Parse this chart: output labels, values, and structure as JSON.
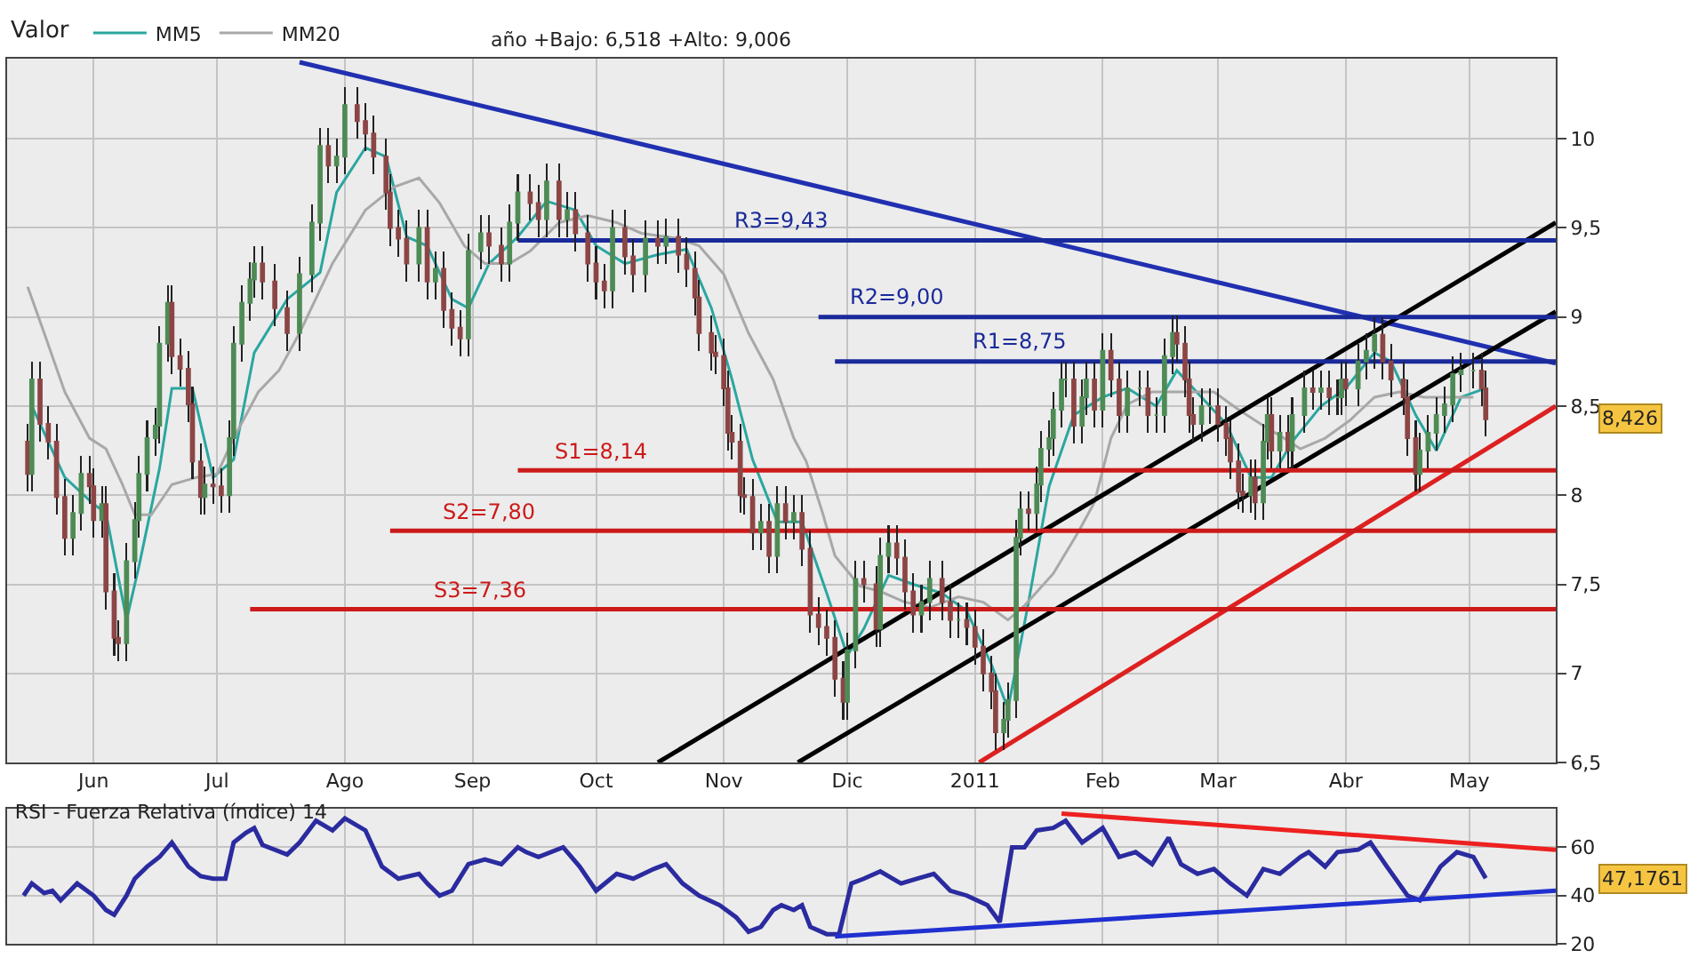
{
  "chart_data": [
    {
      "type": "candlestick",
      "legend": "top left",
      "colors": [
        "#8c4545",
        "#4e8b55",
        "#8c4545",
        "#8c4545",
        "#8c4545",
        "#8c4545",
        "#4e8b55",
        "#4e8b55",
        "#8c4545",
        "#8c4545",
        "#4e8b55",
        "#8c4545",
        "#8c4545",
        "#8c4545",
        "#4e8b55",
        "#4e8b55",
        "#4e8b55",
        "#4e8b55",
        "#4e8b55",
        "#4e8b55",
        "#4e8b55",
        "#8c4545",
        "#8c4545",
        "#8c4545",
        "#8c4545",
        "#8c4545",
        "#4e8b55",
        "#8c4545",
        "#8c4545",
        "#4e8b55",
        "#4e8b55",
        "#4e8b55",
        "#4e8b55",
        "#4e8b55",
        "#8c4545",
        "#8c4545",
        "#8c4545",
        "#4e8b55",
        "#4e8b55",
        "#4e8b55",
        "#8c4545",
        "#4e8b55",
        "#4e8b55",
        "#8c4545",
        "#8c4545",
        "#8c4545",
        "#8c4545",
        "#8c4545",
        "#8c4545",
        "#8c4545",
        "#4e8b55",
        "#8c4545",
        "#4e8b55",
        "#8c4545",
        "#8c4545",
        "#8c4545",
        "#4e8b55",
        "#4e8b55",
        "#8c4545",
        "#8c4545",
        "#4e8b55",
        "#4e8b55",
        "#8c4545",
        "#8c4545",
        "#4e8b55",
        "#8c4545",
        "#4e8b55",
        "#8c4545",
        "#8c4545",
        "#8c4545",
        "#8c4545",
        "#4e8b55",
        "#8c4545",
        "#8c4545",
        "#4e8b55",
        "#8c4545",
        "#4e8b55",
        "#8c4545",
        "#8c4545",
        "#8c4545",
        "#8c4545",
        "#8c4545",
        "#8c4545",
        "#8c4545",
        "#8c4545",
        "#8c4545",
        "#8c4545",
        "#8c4545",
        "#8c4545",
        "#4e8b55",
        "#8c4545",
        "#4e8b55",
        "#8c4545",
        "#4e8b55",
        "#8c4545",
        "#8c4545",
        "#8c4545",
        "#8c4545",
        "#8c4545",
        "#8c4545",
        "#4e8b55",
        "#4e8b55",
        "#8c4545",
        "#8c4545",
        "#4e8b55",
        "#4e8b55",
        "#8c4545",
        "#8c4545",
        "#8c4545",
        "#4e8b55",
        "#4e8b55",
        "#8c4545",
        "#8c4545",
        "#4e8b55",
        "#8c4545",
        "#8c4545",
        "#8c4545",
        "#8c4545",
        "#8c4545",
        "#4e8b55",
        "#4e8b55",
        "#4e8b55",
        "#4e8b55",
        "#8c4545",
        "#4e8b55",
        "#4e8b55",
        "#4e8b55",
        "#4e8b55",
        "#4e8b55",
        "#4e8b55",
        "#8c4545",
        "#4e8b55",
        "#4e8b55",
        "#8c4545",
        "#4e8b55",
        "#8c4545",
        "#8c4545",
        "#4e8b55",
        "#4e8b55",
        "#8c4545",
        "#4e8b55",
        "#4e8b55",
        "#4e8b55",
        "#8c4545",
        "#8c4545",
        "#8c4545",
        "#8c4545",
        "#4e8b55",
        "#4e8b55",
        "#8c4545",
        "#8c4545",
        "#8c4545",
        "#8c4545",
        "#8c4545",
        "#4e8b55",
        "#8c4545",
        "#4e8b55",
        "#4e8b55",
        "#8c4545",
        "#4e8b55",
        "#8c4545",
        "#4e8b55",
        "#4e8b55",
        "#8c4545",
        "#4e8b55",
        "#8c4545",
        "#4e8b55",
        "#4e8b55",
        "#8c4545",
        "#4e8b55",
        "#4e8b55",
        "#4e8b55",
        "#8c4545",
        "#8c4545",
        "#8c4545",
        "#8c4545",
        "#8c4545",
        "#4e8b55",
        "#4e8b55",
        "#4e8b55",
        "#4e8b55",
        "#4e8b55",
        "#4e8b55",
        "#4e8b55",
        "#8c4545",
        "#8c4545"
      ],
      "legend_title": "Valor",
      "grid": true,
      "annotations": [
        "año +Bajo: 6,518 +Alto: 9,006",
        {
          "text": "R3=9,43",
          "x": "2010-11-15",
          "y": 9.43
        },
        {
          "text": "R2=9,00",
          "x": "2010-12-13",
          "y": 9.0
        },
        {
          "text": "R1=8,75",
          "x": "2011-01-12",
          "y": 8.75
        },
        {
          "text": "S1=8,14",
          "x": "2010-10-02",
          "y": 8.14
        },
        {
          "text": "S2=7,80",
          "x": "2010-09-05",
          "y": 7.8
        },
        {
          "text": "S3=7,36",
          "x": "2010-09-03",
          "y": 7.36
        },
        "8,426"
      ],
      "xlim": [
        "2010-05-11",
        "2011-05-22"
      ],
      "xticks": [
        {
          "value": "2010-06-01",
          "label": "Jun"
        },
        {
          "value": "2010-07-01",
          "label": "Jul"
        },
        {
          "value": "2010-08-01",
          "label": "Ago"
        },
        {
          "value": "2010-09-01",
          "label": "Sep"
        },
        {
          "value": "2010-10-01",
          "label": "Oct"
        },
        {
          "value": "2010-11-01",
          "label": "Nov"
        },
        {
          "value": "2010-12-01",
          "label": "Dic"
        },
        {
          "value": "2011-01-01",
          "label": "2011"
        },
        {
          "value": "2011-02-01",
          "label": "Feb"
        },
        {
          "value": "2011-03-01",
          "label": "Mar"
        },
        {
          "value": "2011-04-01",
          "label": "Abr"
        },
        {
          "value": "2011-05-01",
          "label": "May"
        }
      ],
      "ylim": [
        6.5,
        10.45
      ],
      "yticks": [
        {
          "value": 6.5,
          "label": "6,5"
        },
        7,
        {
          "value": 7.5,
          "label": "7,5"
        },
        8,
        {
          "value": 8.5,
          "label": "8,5"
        },
        9,
        {
          "value": 9.5,
          "label": "9,5"
        },
        10
      ],
      "x": [
        "2010-05-16",
        "2010-05-17",
        "2010-05-19",
        "2010-05-21",
        "2010-05-23",
        "2010-05-25",
        "2010-05-27",
        "2010-05-29",
        "2010-05-31",
        "2010-06-01",
        "2010-06-03",
        "2010-06-04",
        "2010-06-06",
        "2010-06-07",
        "2010-06-09",
        "2010-06-11",
        "2010-06-12",
        "2010-06-14",
        "2010-06-16",
        "2010-06-17",
        "2010-06-19",
        "2010-06-20",
        "2010-06-22",
        "2010-06-24",
        "2010-06-25",
        "2010-06-27",
        "2010-06-28",
        "2010-06-30",
        "2010-07-02",
        "2010-07-04",
        "2010-07-05",
        "2010-07-07",
        "2010-07-09",
        "2010-07-10",
        "2010-07-12",
        "2010-07-15",
        "2010-07-18",
        "2010-07-21",
        "2010-07-24",
        "2010-07-26",
        "2010-07-28",
        "2010-07-30",
        "2010-08-01",
        "2010-08-04",
        "2010-08-06",
        "2010-08-08",
        "2010-08-11",
        "2010-08-12",
        "2010-08-14",
        "2010-08-16",
        "2010-08-19",
        "2010-08-21",
        "2010-08-23",
        "2010-08-25",
        "2010-08-27",
        "2010-08-29",
        "2010-08-31",
        "2010-09-03",
        "2010-09-05",
        "2010-09-08",
        "2010-09-10",
        "2010-09-12",
        "2010-09-15",
        "2010-09-17",
        "2010-09-19",
        "2010-09-22",
        "2010-09-24",
        "2010-09-26",
        "2010-09-29",
        "2010-10-01",
        "2010-10-03",
        "2010-10-05",
        "2010-10-08",
        "2010-10-10",
        "2010-10-13",
        "2010-10-16",
        "2010-10-18",
        "2010-10-21",
        "2010-10-23",
        "2010-10-25",
        "2010-10-26",
        "2010-10-29",
        "2010-10-30",
        "2010-11-01",
        "2010-11-02",
        "2010-11-03",
        "2010-11-05",
        "2010-11-06",
        "2010-11-08",
        "2010-11-10",
        "2010-11-12",
        "2010-11-14",
        "2010-11-16",
        "2010-11-18",
        "2010-11-20",
        "2010-11-22",
        "2010-11-24",
        "2010-11-26",
        "2010-11-28",
        "2010-11-30",
        "2010-12-01",
        "2010-12-03",
        "2010-12-05",
        "2010-12-08",
        "2010-12-09",
        "2010-12-11",
        "2010-12-13",
        "2010-12-15",
        "2010-12-17",
        "2010-12-19",
        "2010-12-21",
        "2010-12-24",
        "2010-12-26",
        "2010-12-28",
        "2010-12-30",
        "2011-01-01",
        "2011-01-03",
        "2011-01-05",
        "2011-01-06",
        "2011-01-08",
        "2011-01-09",
        "2011-01-11",
        "2011-01-12",
        "2011-01-14",
        "2011-01-16",
        "2011-01-17",
        "2011-01-19",
        "2011-01-20",
        "2011-01-22",
        "2011-01-23",
        "2011-01-25",
        "2011-01-27",
        "2011-01-28",
        "2011-01-30",
        "2011-02-01",
        "2011-02-03",
        "2011-02-05",
        "2011-02-07",
        "2011-02-10",
        "2011-02-12",
        "2011-02-14",
        "2011-02-16",
        "2011-02-18",
        "2011-02-19",
        "2011-02-21",
        "2011-02-22",
        "2011-02-23",
        "2011-02-25",
        "2011-02-27",
        "2011-03-01",
        "2011-03-03",
        "2011-03-04",
        "2011-03-06",
        "2011-03-07",
        "2011-03-09",
        "2011-03-10",
        "2011-03-12",
        "2011-03-13",
        "2011-03-14",
        "2011-03-16",
        "2011-03-18",
        "2011-03-19",
        "2011-03-22",
        "2011-03-24",
        "2011-03-26",
        "2011-03-28",
        "2011-03-30",
        "2011-03-31",
        "2011-04-01",
        "2011-04-04",
        "2011-04-06",
        "2011-04-08",
        "2011-04-10",
        "2011-04-12",
        "2011-04-15",
        "2011-04-16",
        "2011-04-18",
        "2011-04-19",
        "2011-04-21",
        "2011-04-23",
        "2011-04-25",
        "2011-04-27",
        "2011-04-29",
        "2011-05-02",
        "2011-05-04",
        "2011-05-05"
      ],
      "ohlc": [
        [
          8.3,
          8.4,
          8.02,
          8.12
        ],
        [
          8.12,
          8.75,
          8.02,
          8.65
        ],
        [
          8.65,
          8.75,
          8.3,
          8.4
        ],
        [
          8.4,
          8.5,
          8.2,
          8.3
        ],
        [
          8.3,
          8.4,
          7.89,
          7.99
        ],
        [
          7.99,
          8.09,
          7.66,
          7.76
        ],
        [
          7.76,
          8.0,
          7.66,
          7.9
        ],
        [
          7.9,
          8.22,
          7.8,
          8.12
        ],
        [
          8.12,
          8.22,
          7.95,
          8.05
        ],
        [
          8.05,
          8.15,
          7.76,
          7.86
        ],
        [
          7.86,
          8.05,
          7.76,
          7.95
        ],
        [
          7.95,
          8.05,
          7.36,
          7.46
        ],
        [
          7.46,
          7.56,
          7.1,
          7.2
        ],
        [
          7.2,
          7.3,
          7.07,
          7.17
        ],
        [
          7.17,
          7.73,
          7.07,
          7.63
        ],
        [
          7.63,
          7.96,
          7.53,
          7.86
        ],
        [
          7.86,
          8.22,
          7.76,
          8.12
        ],
        [
          8.12,
          8.42,
          8.02,
          8.32
        ],
        [
          8.32,
          8.49,
          8.22,
          8.39
        ],
        [
          8.39,
          8.95,
          8.29,
          8.85
        ],
        [
          8.85,
          9.18,
          8.75,
          9.08
        ],
        [
          9.08,
          9.18,
          8.68,
          8.78
        ],
        [
          8.78,
          8.88,
          8.61,
          8.71
        ],
        [
          8.71,
          8.81,
          8.41,
          8.51
        ],
        [
          8.51,
          8.61,
          8.09,
          8.19
        ],
        [
          8.19,
          8.29,
          7.89,
          7.99
        ],
        [
          7.99,
          8.16,
          7.89,
          8.06
        ],
        [
          8.06,
          8.16,
          7.95,
          8.05
        ],
        [
          8.05,
          8.15,
          7.9,
          8.0
        ],
        [
          8.0,
          8.42,
          7.9,
          8.32
        ],
        [
          8.32,
          8.95,
          8.22,
          8.85
        ],
        [
          8.85,
          9.18,
          8.75,
          9.08
        ],
        [
          9.08,
          9.31,
          8.98,
          9.21
        ],
        [
          9.21,
          9.4,
          9.11,
          9.3
        ],
        [
          9.3,
          9.4,
          9.1,
          9.2
        ],
        [
          9.2,
          9.3,
          8.95,
          9.05
        ],
        [
          9.05,
          9.15,
          8.81,
          8.91
        ],
        [
          8.91,
          9.34,
          8.81,
          9.24
        ],
        [
          9.24,
          9.63,
          9.14,
          9.53
        ],
        [
          9.53,
          10.06,
          9.43,
          9.96
        ],
        [
          9.96,
          10.06,
          9.75,
          9.85
        ],
        [
          9.85,
          10.0,
          9.75,
          9.9
        ],
        [
          9.9,
          10.29,
          9.8,
          10.19
        ],
        [
          10.19,
          10.29,
          10.0,
          10.1
        ],
        [
          10.1,
          10.2,
          9.93,
          10.03
        ],
        [
          10.03,
          10.13,
          9.8,
          9.9
        ],
        [
          9.9,
          10.0,
          9.6,
          9.7
        ],
        [
          9.7,
          9.8,
          9.4,
          9.5
        ],
        [
          9.5,
          9.6,
          9.34,
          9.44
        ],
        [
          9.44,
          9.54,
          9.2,
          9.3
        ],
        [
          9.3,
          9.6,
          9.2,
          9.5
        ],
        [
          9.5,
          9.6,
          9.1,
          9.2
        ],
        [
          9.2,
          9.37,
          9.1,
          9.27
        ],
        [
          9.27,
          9.37,
          8.94,
          9.04
        ],
        [
          9.04,
          9.14,
          8.84,
          8.94
        ],
        [
          8.94,
          9.04,
          8.78,
          8.88
        ],
        [
          8.88,
          9.47,
          8.78,
          9.37
        ],
        [
          9.37,
          9.57,
          9.27,
          9.47
        ],
        [
          9.47,
          9.57,
          9.3,
          9.4
        ],
        [
          9.4,
          9.5,
          9.2,
          9.3
        ],
        [
          9.3,
          9.63,
          9.2,
          9.53
        ],
        [
          9.53,
          9.8,
          9.43,
          9.7
        ],
        [
          9.7,
          9.8,
          9.54,
          9.64
        ],
        [
          9.64,
          9.74,
          9.45,
          9.55
        ],
        [
          9.55,
          9.86,
          9.45,
          9.76
        ],
        [
          9.76,
          9.86,
          9.45,
          9.55
        ],
        [
          9.55,
          9.7,
          9.45,
          9.6
        ],
        [
          9.6,
          9.7,
          9.37,
          9.47
        ],
        [
          9.47,
          9.57,
          9.2,
          9.3
        ],
        [
          9.3,
          9.4,
          9.1,
          9.2
        ],
        [
          9.2,
          9.3,
          9.05,
          9.15
        ],
        [
          9.15,
          9.6,
          9.05,
          9.5
        ],
        [
          9.5,
          9.6,
          9.24,
          9.34
        ],
        [
          9.34,
          9.44,
          9.14,
          9.24
        ],
        [
          9.24,
          9.54,
          9.14,
          9.44
        ],
        [
          9.44,
          9.54,
          9.3,
          9.4
        ],
        [
          9.4,
          9.55,
          9.3,
          9.45
        ],
        [
          9.45,
          9.55,
          9.25,
          9.35
        ],
        [
          9.35,
          9.45,
          9.17,
          9.27
        ],
        [
          9.27,
          9.37,
          9.01,
          9.11
        ],
        [
          9.11,
          9.21,
          8.81,
          8.91
        ],
        [
          8.91,
          9.01,
          8.7,
          8.8
        ],
        [
          8.8,
          8.9,
          8.68,
          8.78
        ],
        [
          8.78,
          8.88,
          8.5,
          8.6
        ],
        [
          8.6,
          8.7,
          8.25,
          8.35
        ],
        [
          8.35,
          8.45,
          8.2,
          8.3
        ],
        [
          8.3,
          8.4,
          7.9,
          8.0
        ],
        [
          8.0,
          8.1,
          7.89,
          7.99
        ],
        [
          7.99,
          8.09,
          7.69,
          7.79
        ],
        [
          7.79,
          7.95,
          7.69,
          7.85
        ],
        [
          7.85,
          7.95,
          7.56,
          7.66
        ],
        [
          7.66,
          8.05,
          7.56,
          7.95
        ],
        [
          7.95,
          8.05,
          7.75,
          7.85
        ],
        [
          7.85,
          8.0,
          7.75,
          7.9
        ],
        [
          7.9,
          8.0,
          7.6,
          7.7
        ],
        [
          7.7,
          7.8,
          7.23,
          7.33
        ],
        [
          7.33,
          7.43,
          7.16,
          7.26
        ],
        [
          7.26,
          7.36,
          7.1,
          7.2
        ],
        [
          7.2,
          7.3,
          6.87,
          6.97
        ],
        [
          6.97,
          7.07,
          6.74,
          6.84
        ],
        [
          6.84,
          7.23,
          6.74,
          7.13
        ],
        [
          7.13,
          7.63,
          7.03,
          7.53
        ],
        [
          7.53,
          7.63,
          7.4,
          7.5
        ],
        [
          7.5,
          7.6,
          7.15,
          7.25
        ],
        [
          7.25,
          7.76,
          7.15,
          7.66
        ],
        [
          7.66,
          7.83,
          7.56,
          7.73
        ],
        [
          7.73,
          7.83,
          7.55,
          7.65
        ],
        [
          7.65,
          7.75,
          7.36,
          7.46
        ],
        [
          7.46,
          7.56,
          7.23,
          7.33
        ],
        [
          7.33,
          7.5,
          7.23,
          7.4
        ],
        [
          7.4,
          7.63,
          7.3,
          7.53
        ],
        [
          7.53,
          7.63,
          7.3,
          7.4
        ],
        [
          7.4,
          7.5,
          7.2,
          7.3
        ],
        [
          7.3,
          7.4,
          7.2,
          7.3
        ],
        [
          7.3,
          7.4,
          7.16,
          7.26
        ],
        [
          7.26,
          7.36,
          7.05,
          7.15
        ],
        [
          7.15,
          7.25,
          6.9,
          7.0
        ],
        [
          7.0,
          7.1,
          6.8,
          6.9
        ],
        [
          6.9,
          7.0,
          6.57,
          6.67
        ],
        [
          6.67,
          6.84,
          6.57,
          6.74
        ],
        [
          6.74,
          6.95,
          6.64,
          6.85
        ],
        [
          6.85,
          7.86,
          6.75,
          7.76
        ],
        [
          7.76,
          8.02,
          7.66,
          7.92
        ],
        [
          7.92,
          8.02,
          7.8,
          7.9
        ],
        [
          7.9,
          8.16,
          7.8,
          8.06
        ],
        [
          8.06,
          8.36,
          7.96,
          8.26
        ],
        [
          8.26,
          8.42,
          8.16,
          8.32
        ],
        [
          8.32,
          8.58,
          8.22,
          8.48
        ],
        [
          8.48,
          8.75,
          8.38,
          8.65
        ],
        [
          8.65,
          8.75,
          8.55,
          8.65
        ],
        [
          8.65,
          8.75,
          8.29,
          8.39
        ],
        [
          8.39,
          8.65,
          8.29,
          8.55
        ],
        [
          8.55,
          8.75,
          8.45,
          8.65
        ],
        [
          8.65,
          8.75,
          8.38,
          8.48
        ],
        [
          8.48,
          8.91,
          8.38,
          8.81
        ],
        [
          8.81,
          8.91,
          8.55,
          8.65
        ],
        [
          8.65,
          8.75,
          8.35,
          8.45
        ],
        [
          8.45,
          8.7,
          8.35,
          8.6
        ],
        [
          8.6,
          8.7,
          8.5,
          8.6
        ],
        [
          8.6,
          8.7,
          8.35,
          8.45
        ],
        [
          8.45,
          8.55,
          8.35,
          8.45
        ],
        [
          8.45,
          8.88,
          8.35,
          8.78
        ],
        [
          8.78,
          9.01,
          8.68,
          8.91
        ],
        [
          8.91,
          9.01,
          8.75,
          8.85
        ],
        [
          8.85,
          8.95,
          8.55,
          8.65
        ],
        [
          8.65,
          8.75,
          8.35,
          8.45
        ],
        [
          8.45,
          8.55,
          8.3,
          8.4
        ],
        [
          8.4,
          8.6,
          8.3,
          8.5
        ],
        [
          8.5,
          8.6,
          8.4,
          8.5
        ],
        [
          8.5,
          8.6,
          8.3,
          8.4
        ],
        [
          8.4,
          8.5,
          8.22,
          8.32
        ],
        [
          8.32,
          8.42,
          8.09,
          8.19
        ],
        [
          8.19,
          8.29,
          7.92,
          8.02
        ],
        [
          8.02,
          8.12,
          7.9,
          8.0
        ],
        [
          8.0,
          8.2,
          7.9,
          8.1
        ],
        [
          8.1,
          8.2,
          7.86,
          7.96
        ],
        [
          7.96,
          8.4,
          7.86,
          8.3
        ],
        [
          8.3,
          8.55,
          8.2,
          8.45
        ],
        [
          8.45,
          8.55,
          8.15,
          8.25
        ],
        [
          8.25,
          8.45,
          8.15,
          8.35
        ],
        [
          8.35,
          8.45,
          8.15,
          8.25
        ],
        [
          8.25,
          8.55,
          8.15,
          8.45
        ],
        [
          8.45,
          8.7,
          8.35,
          8.6
        ],
        [
          8.6,
          8.7,
          8.48,
          8.58
        ],
        [
          8.58,
          8.7,
          8.48,
          8.6
        ],
        [
          8.6,
          8.7,
          8.45,
          8.55
        ],
        [
          8.55,
          8.65,
          8.45,
          8.55
        ],
        [
          8.55,
          8.75,
          8.45,
          8.65
        ],
        [
          8.65,
          8.75,
          8.5,
          8.6
        ],
        [
          8.6,
          8.85,
          8.5,
          8.75
        ],
        [
          8.75,
          8.91,
          8.65,
          8.81
        ],
        [
          8.81,
          9.0,
          8.71,
          8.9
        ],
        [
          8.9,
          9.0,
          8.65,
          8.75
        ],
        [
          8.75,
          8.85,
          8.55,
          8.65
        ],
        [
          8.65,
          8.75,
          8.45,
          8.55
        ],
        [
          8.55,
          8.65,
          8.22,
          8.32
        ],
        [
          8.32,
          8.42,
          8.02,
          8.12
        ],
        [
          8.12,
          8.35,
          8.02,
          8.25
        ],
        [
          8.25,
          8.45,
          8.15,
          8.35
        ],
        [
          8.35,
          8.55,
          8.25,
          8.45
        ],
        [
          8.45,
          8.61,
          8.35,
          8.51
        ],
        [
          8.51,
          8.78,
          8.41,
          8.68
        ],
        [
          8.68,
          8.8,
          8.58,
          8.7
        ],
        [
          8.7,
          8.8,
          8.6,
          8.7
        ],
        [
          8.7,
          8.8,
          8.5,
          8.6
        ],
        [
          8.6,
          8.7,
          8.33,
          8.426
        ]
      ],
      "series": [
        {
          "type": "line",
          "name": "MM5",
          "color": "#2aa6a0",
          "x": [
            "2010-05-17",
            "2010-05-25",
            "2010-06-01",
            "2010-06-04",
            "2010-06-09",
            "2010-06-12",
            "2010-06-17",
            "2010-06-20",
            "2010-06-25",
            "2010-06-30",
            "2010-07-05",
            "2010-07-10",
            "2010-07-18",
            "2010-07-26",
            "2010-07-30",
            "2010-08-06",
            "2010-08-11",
            "2010-08-16",
            "2010-08-21",
            "2010-08-27",
            "2010-08-31",
            "2010-09-05",
            "2010-09-12",
            "2010-09-19",
            "2010-09-26",
            "2010-10-01",
            "2010-10-08",
            "2010-10-16",
            "2010-10-23",
            "2010-10-29",
            "2010-11-03",
            "2010-11-08",
            "2010-11-14",
            "2010-11-20",
            "2010-11-26",
            "2010-12-01",
            "2010-12-05",
            "2010-12-11",
            "2010-12-17",
            "2010-12-24",
            "2010-12-30",
            "2011-01-05",
            "2011-01-09",
            "2011-01-14",
            "2011-01-19",
            "2011-01-25",
            "2011-02-01",
            "2011-02-07",
            "2011-02-14",
            "2011-02-19",
            "2011-02-25",
            "2011-03-03",
            "2011-03-09",
            "2011-03-14",
            "2011-03-19",
            "2011-03-26",
            "2011-04-01",
            "2011-04-08",
            "2011-04-12",
            "2011-04-18",
            "2011-04-23",
            "2011-04-29",
            "2011-05-05"
          ],
          "values": [
            8.5,
            8.1,
            7.95,
            7.9,
            7.3,
            7.6,
            8.15,
            8.6,
            8.6,
            8.1,
            8.2,
            8.8,
            9.1,
            9.25,
            9.7,
            9.95,
            9.9,
            9.45,
            9.4,
            9.1,
            9.05,
            9.3,
            9.45,
            9.65,
            9.6,
            9.4,
            9.3,
            9.35,
            9.38,
            9.05,
            8.65,
            8.2,
            7.85,
            7.85,
            7.45,
            7.1,
            7.25,
            7.55,
            7.5,
            7.45,
            7.35,
            7.05,
            6.8,
            7.4,
            8.05,
            8.45,
            8.55,
            8.6,
            8.5,
            8.7,
            8.55,
            8.4,
            8.1,
            8.1,
            8.3,
            8.5,
            8.6,
            8.8,
            8.75,
            8.45,
            8.25,
            8.55,
            8.6
          ]
        },
        {
          "type": "line",
          "name": "MM20",
          "color": "#a8a8a8",
          "x": [
            "2010-05-16",
            "2010-05-20",
            "2010-05-25",
            "2010-05-31",
            "2010-06-04",
            "2010-06-08",
            "2010-06-11",
            "2010-06-15",
            "2010-06-20",
            "2010-06-26",
            "2010-07-01",
            "2010-07-05",
            "2010-07-11",
            "2010-07-16",
            "2010-07-21",
            "2010-07-29",
            "2010-08-06",
            "2010-08-13",
            "2010-08-19",
            "2010-08-24",
            "2010-08-30",
            "2010-09-04",
            "2010-09-10",
            "2010-09-15",
            "2010-09-22",
            "2010-09-29",
            "2010-10-06",
            "2010-10-12",
            "2010-10-21",
            "2010-10-26",
            "2010-11-01",
            "2010-11-07",
            "2010-11-13",
            "2010-11-18",
            "2010-11-21",
            "2010-11-25",
            "2010-11-28",
            "2010-12-04",
            "2010-12-09",
            "2010-12-15",
            "2010-12-21",
            "2010-12-28",
            "2011-01-03",
            "2011-01-09",
            "2011-01-13",
            "2011-01-20",
            "2011-01-26",
            "2011-01-30",
            "2011-02-03",
            "2011-02-07",
            "2011-02-13",
            "2011-02-19",
            "2011-02-24",
            "2011-02-28",
            "2011-03-06",
            "2011-03-12",
            "2011-03-17",
            "2011-03-21",
            "2011-03-27",
            "2011-04-02",
            "2011-04-08",
            "2011-04-14",
            "2011-04-20",
            "2011-04-27",
            "2011-05-02"
          ],
          "values": [
            9.17,
            8.91,
            8.58,
            8.32,
            8.26,
            8.06,
            7.89,
            7.89,
            8.06,
            8.1,
            8.12,
            8.32,
            8.58,
            8.7,
            8.91,
            9.3,
            9.6,
            9.73,
            9.78,
            9.64,
            9.4,
            9.3,
            9.3,
            9.37,
            9.53,
            9.57,
            9.53,
            9.47,
            9.44,
            9.4,
            9.24,
            8.91,
            8.65,
            8.32,
            8.19,
            7.9,
            7.66,
            7.49,
            7.46,
            7.4,
            7.37,
            7.43,
            7.4,
            7.3,
            7.38,
            7.56,
            7.79,
            7.96,
            8.32,
            8.51,
            8.58,
            8.58,
            8.58,
            8.58,
            8.48,
            8.39,
            8.32,
            8.26,
            8.32,
            8.42,
            8.55,
            8.58,
            8.55,
            8.55,
            8.55
          ]
        },
        {
          "type": "line",
          "color": "#2030b0",
          "x": [
            "2010-07-21",
            "2011-05-22"
          ],
          "values": [
            10.43,
            8.74
          ]
        },
        {
          "type": "line",
          "color": "#dd2020",
          "x": [
            "2011-01-02",
            "2011-05-22"
          ],
          "values": [
            6.5,
            8.5
          ]
        },
        {
          "type": "line",
          "color": "#000000",
          "x": [
            "2010-10-16",
            "2011-05-22"
          ],
          "values": [
            6.5,
            9.53
          ]
        },
        {
          "type": "line",
          "color": "#000000",
          "x": [
            "2010-11-19",
            "2011-05-22"
          ],
          "values": [
            6.5,
            9.03
          ]
        },
        {
          "type": "line",
          "color": "#1a2a9a",
          "x": [
            "2010-09-12",
            "2011-05-22"
          ],
          "values": [
            9.43,
            9.43
          ]
        },
        {
          "type": "line",
          "color": "#1a2a9a",
          "x": [
            "2010-11-24",
            "2011-05-22"
          ],
          "values": [
            9.0,
            9.0
          ]
        },
        {
          "type": "line",
          "color": "#1a2a9a",
          "x": [
            "2010-11-28",
            "2011-05-22"
          ],
          "values": [
            8.75,
            8.75
          ]
        },
        {
          "type": "line",
          "color": "#cc1a1a",
          "x": [
            "2010-09-12",
            "2011-05-22"
          ],
          "values": [
            8.14,
            8.14
          ]
        },
        {
          "type": "line",
          "color": "#cc1a1a",
          "x": [
            "2010-08-12",
            "2011-05-22"
          ],
          "values": [
            7.8,
            7.8
          ]
        },
        {
          "type": "line",
          "color": "#cc1a1a",
          "x": [
            "2010-07-09",
            "2011-05-22"
          ],
          "values": [
            7.36,
            7.36
          ]
        }
      ]
    },
    {
      "type": "line",
      "title": "RSI - Fuerza Relativa (índice) 14",
      "grid": true,
      "tick_labels": "y",
      "annotations": [
        "47,1761"
      ],
      "xlim": [
        "2010-05-11",
        "2011-05-22"
      ],
      "xticks": [
        {
          "value": "2010-06-01",
          "label": null
        },
        {
          "value": "2010-07-01",
          "label": null
        },
        {
          "value": "2010-08-01",
          "label": null
        },
        {
          "value": "2010-09-01",
          "label": null
        },
        {
          "value": "2010-10-01",
          "label": null
        },
        {
          "value": "2010-11-01",
          "label": null
        },
        {
          "value": "2010-12-01",
          "label": null
        },
        {
          "value": "2011-01-01",
          "label": null
        },
        {
          "value": "2011-02-01",
          "label": null
        },
        {
          "value": "2011-03-01",
          "label": null
        },
        {
          "value": "2011-04-01",
          "label": null
        },
        {
          "value": "2011-05-01",
          "label": null
        }
      ],
      "ylim": [
        20,
        76
      ],
      "yticks": [
        20,
        40,
        60
      ],
      "series": [
        {
          "color": "#2b2ba0",
          "x": [
            "2010-05-15",
            "2010-05-17",
            "2010-05-20",
            "2010-05-22",
            "2010-05-24",
            "2010-05-28",
            "2010-06-01",
            "2010-06-04",
            "2010-06-06",
            "2010-06-09",
            "2010-06-11",
            "2010-06-14",
            "2010-06-17",
            "2010-06-20",
            "2010-06-22",
            "2010-06-24",
            "2010-06-27",
            "2010-06-30",
            "2010-07-03",
            "2010-07-05",
            "2010-07-08",
            "2010-07-10",
            "2010-07-12",
            "2010-07-18",
            "2010-07-21",
            "2010-07-25",
            "2010-07-29",
            "2010-08-01",
            "2010-08-06",
            "2010-08-10",
            "2010-08-14",
            "2010-08-19",
            "2010-08-21",
            "2010-08-24",
            "2010-08-27",
            "2010-08-31",
            "2010-09-04",
            "2010-09-08",
            "2010-09-12",
            "2010-09-14",
            "2010-09-17",
            "2010-09-23",
            "2010-09-27",
            "2010-10-01",
            "2010-10-06",
            "2010-10-10",
            "2010-10-15",
            "2010-10-18",
            "2010-10-22",
            "2010-10-26",
            "2010-10-31",
            "2010-11-04",
            "2010-11-07",
            "2010-11-10",
            "2010-11-13",
            "2010-11-15",
            "2010-11-18",
            "2010-11-20",
            "2010-11-22",
            "2010-11-26",
            "2010-11-29",
            "2010-12-02",
            "2010-12-05",
            "2010-12-09",
            "2010-12-14",
            "2010-12-18",
            "2010-12-22",
            "2010-12-26",
            "2010-12-30",
            "2011-01-04",
            "2011-01-07",
            "2011-01-10",
            "2011-01-13",
            "2011-01-16",
            "2011-01-20",
            "2011-01-23",
            "2011-01-27",
            "2011-02-01",
            "2011-02-05",
            "2011-02-09",
            "2011-02-13",
            "2011-02-17",
            "2011-02-20",
            "2011-02-24",
            "2011-02-28",
            "2011-03-04",
            "2011-03-08",
            "2011-03-12",
            "2011-03-16",
            "2011-03-21",
            "2011-03-23",
            "2011-03-27",
            "2011-03-30",
            "2011-04-04",
            "2011-04-07",
            "2011-04-11",
            "2011-04-16",
            "2011-04-19",
            "2011-04-24",
            "2011-04-28",
            "2011-05-02",
            "2011-05-05"
          ],
          "values": [
            40,
            45,
            41,
            42,
            38,
            45,
            40,
            34,
            32,
            40,
            47,
            52,
            56,
            62,
            57,
            52,
            48,
            47,
            47,
            62,
            66,
            68,
            61,
            57,
            62,
            71,
            67,
            72,
            67,
            52,
            47,
            49,
            45,
            40,
            42,
            53,
            55,
            53,
            60,
            58,
            56,
            60,
            52,
            42,
            49,
            47,
            51,
            53,
            45,
            40,
            36,
            31,
            25,
            27,
            34,
            36,
            34,
            36,
            27,
            24,
            24,
            45,
            47,
            50,
            45,
            47,
            49,
            42,
            40,
            36,
            29,
            60,
            60,
            67,
            68,
            71,
            62,
            68,
            56,
            58,
            53,
            64,
            53,
            49,
            51,
            45,
            40,
            51,
            49,
            56,
            58,
            52,
            58,
            59,
            62,
            52,
            40,
            38,
            52,
            58,
            56,
            47.1761
          ]
        },
        {
          "color": "#ee2020",
          "x": [
            "2011-01-22",
            "2011-05-22"
          ],
          "values": [
            74,
            59
          ]
        },
        {
          "color": "#2030d0",
          "x": [
            "2010-11-28",
            "2011-05-22"
          ],
          "values": [
            23,
            42
          ]
        }
      ]
    }
  ]
}
